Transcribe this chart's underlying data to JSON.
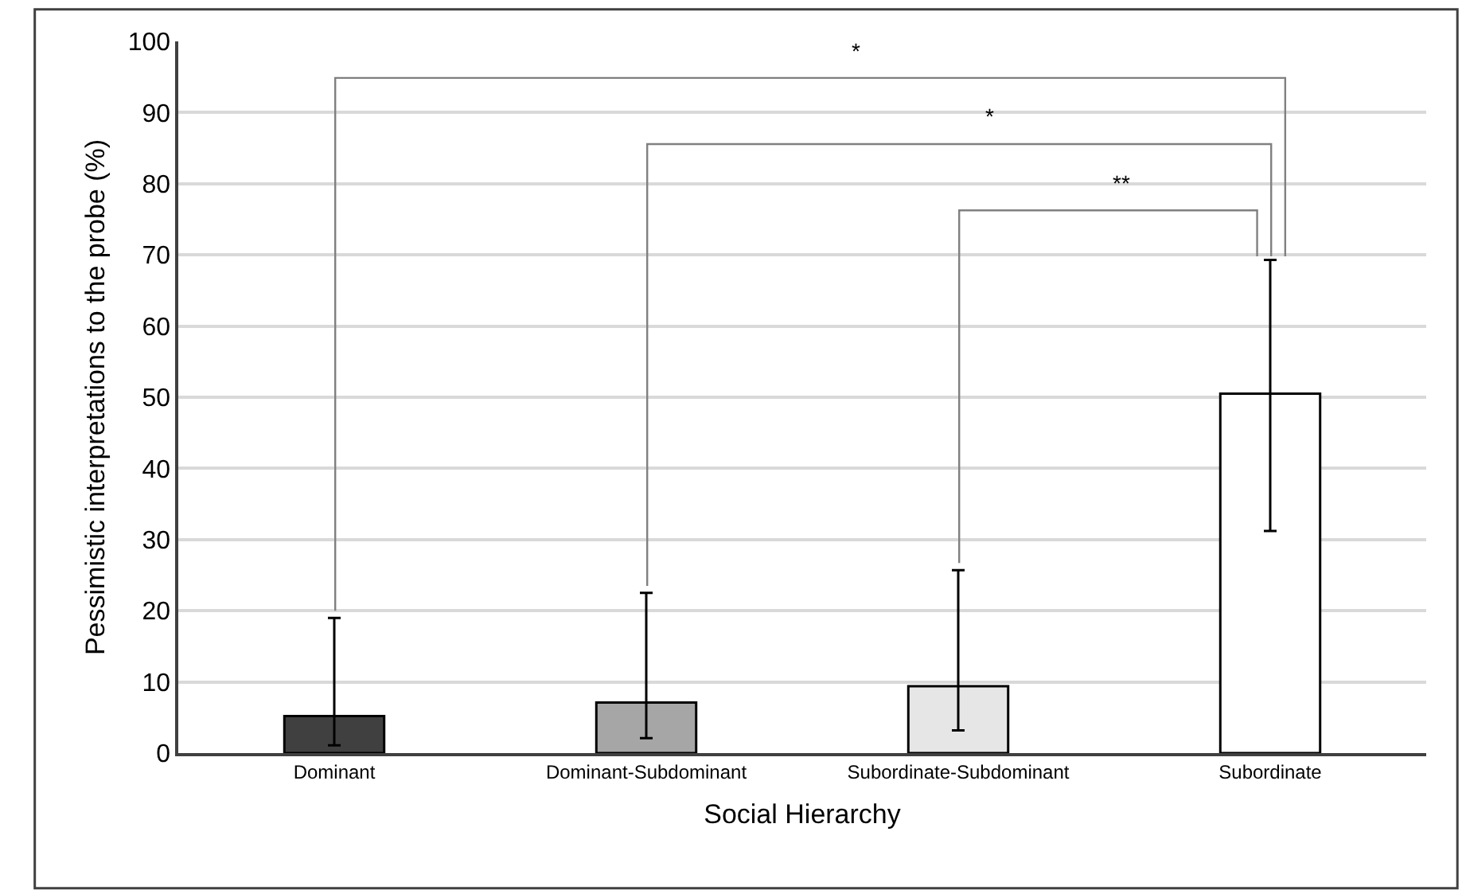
{
  "chart_data": {
    "type": "bar",
    "xlabel": "Social Hierarchy",
    "ylabel": "Pessimistic interpretations to the probe (%)",
    "categories": [
      "Dominant",
      "Dominant-Subdominant",
      "Subordinate-Subdominant",
      "Subordinate"
    ],
    "values": [
      5.2,
      7.1,
      9.4,
      50.5
    ],
    "colors": [
      "#404040",
      "#a6a6a6",
      "#e7e6e6",
      "#ffffff"
    ],
    "errors": [
      [
        1.1,
        19
      ],
      [
        2.1,
        22.5
      ],
      [
        3.2,
        25.7
      ],
      [
        31.2,
        69.3
      ]
    ],
    "ylim": [
      0,
      100
    ],
    "yticks": [
      0,
      10,
      20,
      30,
      40,
      50,
      60,
      70,
      80,
      90,
      100
    ],
    "grid": "y",
    "annotations": [
      "*",
      "*",
      "**"
    ]
  }
}
